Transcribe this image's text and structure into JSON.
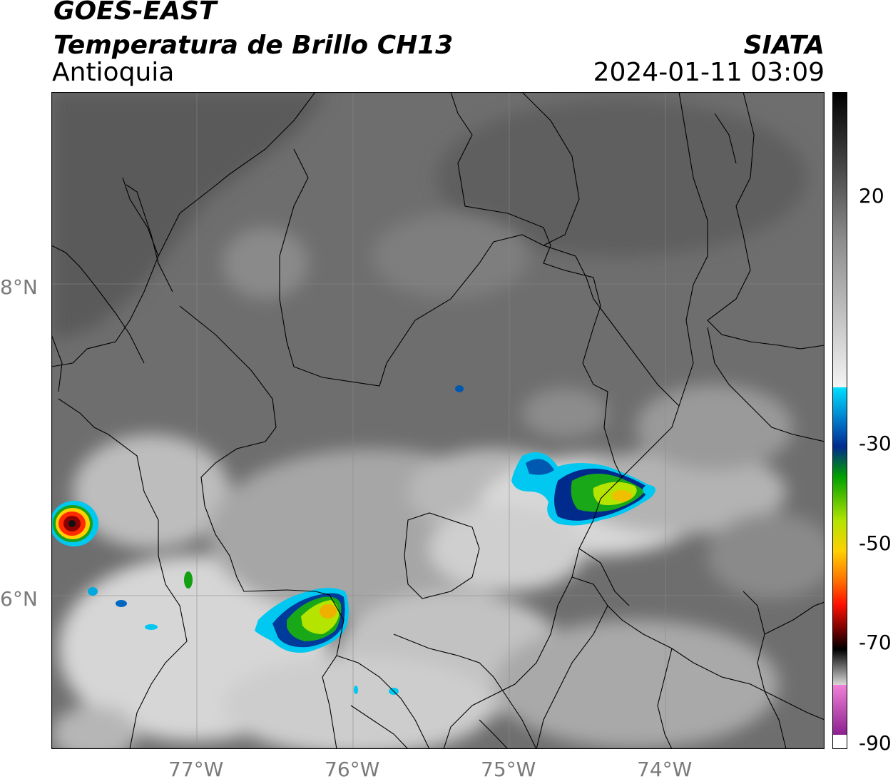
{
  "header": {
    "title_line1": "GOES-EAST",
    "title_line2": "Temperatura de Brillo CH13",
    "region": "Antioquia",
    "organization": "SIATA",
    "timestamp": "2024-01-11 03:09"
  },
  "map": {
    "lat_labels": [
      "8°N",
      "6°N"
    ],
    "lon_labels": [
      "77°W",
      "76°W",
      "75°W",
      "74°W"
    ]
  },
  "colorbar": {
    "tick_labels": [
      "20",
      "-30",
      "-50",
      "-70",
      "-90"
    ],
    "stops": [
      "#000000",
      "#555555",
      "#aaaaaa",
      "#f4f4f4",
      "#00c8f0",
      "#002a8c",
      "#00a000",
      "#b4e400",
      "#ffd000",
      "#ff2800",
      "#5a0000",
      "#000000",
      "#c8c8c8",
      "#e070d0",
      "#8c2090",
      "#ffffff"
    ]
  }
}
